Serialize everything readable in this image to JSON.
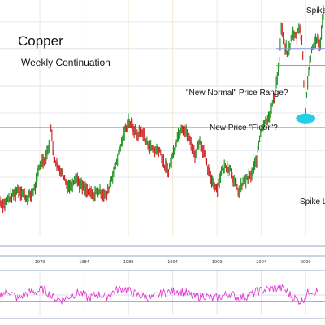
{
  "chart_data": {
    "type": "line",
    "title": "Copper",
    "subtitle": "Weekly Continuation",
    "xlabel": "",
    "ylabel": "",
    "x_ticks": [
      "1979",
      "1984",
      "1989",
      "1994",
      "1999",
      "2004",
      "2009"
    ],
    "x_range": [
      1974.5,
      2011
    ],
    "y_range": [
      0.4,
      4.8
    ],
    "grid": true,
    "series": [
      {
        "type": "price-bars",
        "x": [
          1974.5,
          1975.0,
          1975.5,
          1976.0,
          1976.5,
          1977.0,
          1977.5,
          1978.0,
          1978.5,
          1979.0,
          1979.5,
          1980.0,
          1980.2,
          1980.5,
          1981.0,
          1981.5,
          1982.0,
          1982.5,
          1983.0,
          1983.5,
          1984.0,
          1984.5,
          1985.0,
          1985.5,
          1986.0,
          1986.5,
          1987.0,
          1987.5,
          1988.0,
          1988.5,
          1989.0,
          1989.5,
          1990.0,
          1990.5,
          1991.0,
          1991.5,
          1992.0,
          1992.5,
          1993.0,
          1993.5,
          1994.0,
          1994.5,
          1995.0,
          1995.5,
          1996.0,
          1996.5,
          1997.0,
          1997.5,
          1998.0,
          1998.5,
          1999.0,
          1999.5,
          2000.0,
          2000.5,
          2001.0,
          2001.5,
          2002.0,
          2002.5,
          2003.0,
          2003.5,
          2004.0,
          2004.5,
          2005.0,
          2005.5,
          2006.0,
          2006.3,
          2006.5,
          2007.0,
          2007.5,
          2008.0,
          2008.3,
          2008.6,
          2008.9,
          2009.0,
          2009.3,
          2009.6,
          2010.0,
          2010.3,
          2010.6,
          2011.0
        ],
        "y": [
          0.58,
          0.56,
          0.6,
          0.62,
          0.66,
          0.64,
          0.6,
          0.62,
          0.68,
          0.86,
          0.92,
          1.02,
          1.38,
          0.98,
          0.84,
          0.8,
          0.7,
          0.68,
          0.76,
          0.7,
          0.66,
          0.64,
          0.62,
          0.65,
          0.64,
          0.61,
          0.72,
          0.84,
          1.0,
          1.2,
          1.38,
          1.28,
          1.18,
          1.25,
          1.1,
          1.04,
          1.0,
          1.02,
          0.86,
          0.8,
          0.95,
          1.15,
          1.3,
          1.22,
          1.1,
          0.95,
          1.12,
          1.0,
          0.8,
          0.72,
          0.66,
          0.8,
          0.85,
          0.82,
          0.7,
          0.64,
          0.72,
          0.74,
          0.78,
          0.92,
          1.28,
          1.38,
          1.5,
          1.8,
          2.5,
          3.9,
          3.2,
          2.8,
          3.5,
          3.4,
          3.9,
          3.2,
          1.4,
          1.5,
          2.3,
          2.8,
          3.2,
          3.4,
          3.0,
          4.4
        ]
      },
      {
        "type": "oscillator",
        "x": [
          1974.5,
          1975.5,
          1976.5,
          1977.5,
          1978.5,
          1979.5,
          1980.5,
          1981.5,
          1982.5,
          1983.5,
          1984.5,
          1985.5,
          1986.5,
          1987.5,
          1988.5,
          1989.5,
          1990.5,
          1991.5,
          1992.5,
          1993.5,
          1994.5,
          1995.5,
          1996.5,
          1997.5,
          1998.5,
          1999.5,
          2000.5,
          2001.5,
          2002.5,
          2003.5,
          2004.5,
          2005.5,
          2006.5,
          2007.5,
          2008.5,
          2009.5,
          2010.5
        ],
        "y": [
          50,
          62,
          38,
          55,
          60,
          66,
          42,
          36,
          48,
          58,
          40,
          52,
          45,
          63,
          70,
          55,
          47,
          40,
          52,
          58,
          64,
          56,
          43,
          50,
          38,
          46,
          54,
          41,
          48,
          60,
          66,
          70,
          68,
          45,
          30,
          64,
          58
        ]
      }
    ],
    "reference_lines": [
      {
        "style": "horizontal",
        "value": 1.28,
        "color": "#3a46d8"
      },
      {
        "style": "horizontal",
        "value": 3.0,
        "color": "#8e99d8"
      },
      {
        "style": "horizontal",
        "value": 2.5,
        "color": "#8e99d8"
      }
    ],
    "annotations": [
      {
        "text": "Spike",
        "x": 2011,
        "y": 4.8
      },
      {
        "text": "\"New Normal\" Price Range?",
        "x": 2007.5,
        "y": 3.1
      },
      {
        "text": "New Price \"Floor\"?",
        "x": 2007.5,
        "y": 2.58
      },
      {
        "text": "Spike L",
        "x": 2009,
        "y": 1.1
      }
    ],
    "colors": {
      "up": "#1a8f1a",
      "down": "#cc1f1f",
      "oscillator": "#e02fcf",
      "marker": "#22d0e6"
    }
  }
}
